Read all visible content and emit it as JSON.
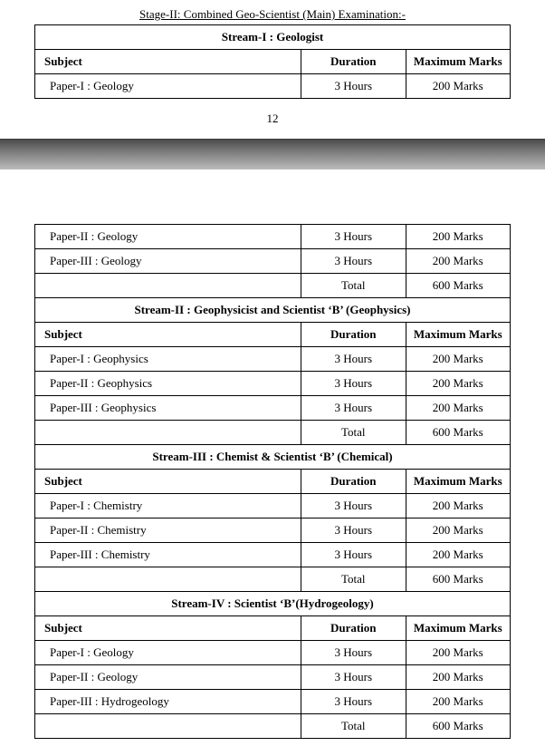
{
  "stage_title": "Stage-II: Combined Geo-Scientist (Main) Examination:-",
  "page_number": "12",
  "headers": {
    "subject": "Subject",
    "duration": "Duration",
    "marks": "Maximum Marks"
  },
  "stream1": {
    "title": "Stream-I : Geologist",
    "rows_top": [
      {
        "subject": "Paper-I : Geology",
        "duration": "3 Hours",
        "marks": "200 Marks"
      }
    ],
    "rows_bottom": [
      {
        "subject": "Paper-II : Geology",
        "duration": "3 Hours",
        "marks": "200 Marks"
      },
      {
        "subject": "Paper-III : Geology",
        "duration": "3 Hours",
        "marks": "200 Marks"
      }
    ],
    "total": {
      "label": "Total",
      "marks": "600 Marks"
    }
  },
  "stream2": {
    "title": "Stream-II : Geophysicist and Scientist ‘B’ (Geophysics)",
    "rows": [
      {
        "subject": "Paper-I : Geophysics",
        "duration": "3 Hours",
        "marks": "200 Marks"
      },
      {
        "subject": "Paper-II : Geophysics",
        "duration": "3 Hours",
        "marks": "200 Marks"
      },
      {
        "subject": "Paper-III : Geophysics",
        "duration": "3 Hours",
        "marks": "200 Marks"
      }
    ],
    "total": {
      "label": "Total",
      "marks": "600 Marks"
    }
  },
  "stream3": {
    "title": "Stream-III : Chemist & Scientist ‘B’ (Chemical)",
    "rows": [
      {
        "subject": "Paper-I : Chemistry",
        "duration": "3 Hours",
        "marks": "200 Marks"
      },
      {
        "subject": "Paper-II : Chemistry",
        "duration": "3 Hours",
        "marks": "200 Marks"
      },
      {
        "subject": "Paper-III : Chemistry",
        "duration": "3 Hours",
        "marks": "200 Marks"
      }
    ],
    "total": {
      "label": "Total",
      "marks": "600 Marks"
    }
  },
  "stream4": {
    "title": "Stream-IV : Scientist ‘B’(Hydrogeology)",
    "rows": [
      {
        "subject": "Paper-I : Geology",
        "duration": "3 Hours",
        "marks": "200 Marks"
      },
      {
        "subject": "Paper-II : Geology",
        "duration": "3 Hours",
        "marks": "200 Marks"
      },
      {
        "subject": "Paper-III : Hydrogeology",
        "duration": "3 Hours",
        "marks": "200 Marks"
      }
    ],
    "total": {
      "label": "Total",
      "marks": "600 Marks"
    }
  }
}
